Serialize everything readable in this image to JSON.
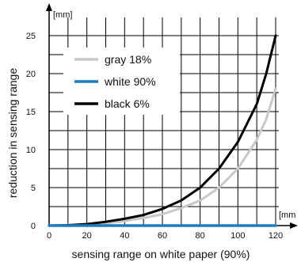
{
  "chart_data": {
    "type": "line",
    "xlabel": "sensing range on white paper (90%)",
    "ylabel": "reduction in sensing range",
    "x_unit": "[mm",
    "y_unit": "[mm]",
    "xlim": [
      0,
      120
    ],
    "ylim": [
      0,
      25
    ],
    "xticks": [
      0,
      20,
      40,
      60,
      80,
      100,
      120
    ],
    "yticks": [
      0,
      5,
      10,
      15,
      20,
      25
    ],
    "grid": true,
    "legend_position": "top-left",
    "series": [
      {
        "name": "gray 18%",
        "color": "#c8c8c8",
        "x": [
          0,
          10,
          20,
          30,
          40,
          50,
          60,
          70,
          80,
          90,
          100,
          110,
          115,
          120
        ],
        "y": [
          0,
          0.05,
          0.15,
          0.3,
          0.6,
          1.0,
          1.5,
          2.3,
          3.3,
          5.0,
          7.5,
          11.3,
          14.0,
          18.0
        ]
      },
      {
        "name": "white 90%",
        "color": "#1a7fc1",
        "x": [
          0,
          20,
          40,
          60,
          80,
          100,
          120
        ],
        "y": [
          0,
          0,
          0,
          0,
          0,
          0,
          0
        ]
      },
      {
        "name": "black 6%",
        "color": "#000000",
        "x": [
          0,
          10,
          20,
          30,
          40,
          50,
          60,
          70,
          80,
          90,
          100,
          110,
          115,
          120
        ],
        "y": [
          0,
          0.05,
          0.2,
          0.5,
          0.9,
          1.4,
          2.2,
          3.3,
          5.0,
          7.5,
          11.0,
          16.0,
          20.0,
          25.0
        ]
      }
    ]
  }
}
